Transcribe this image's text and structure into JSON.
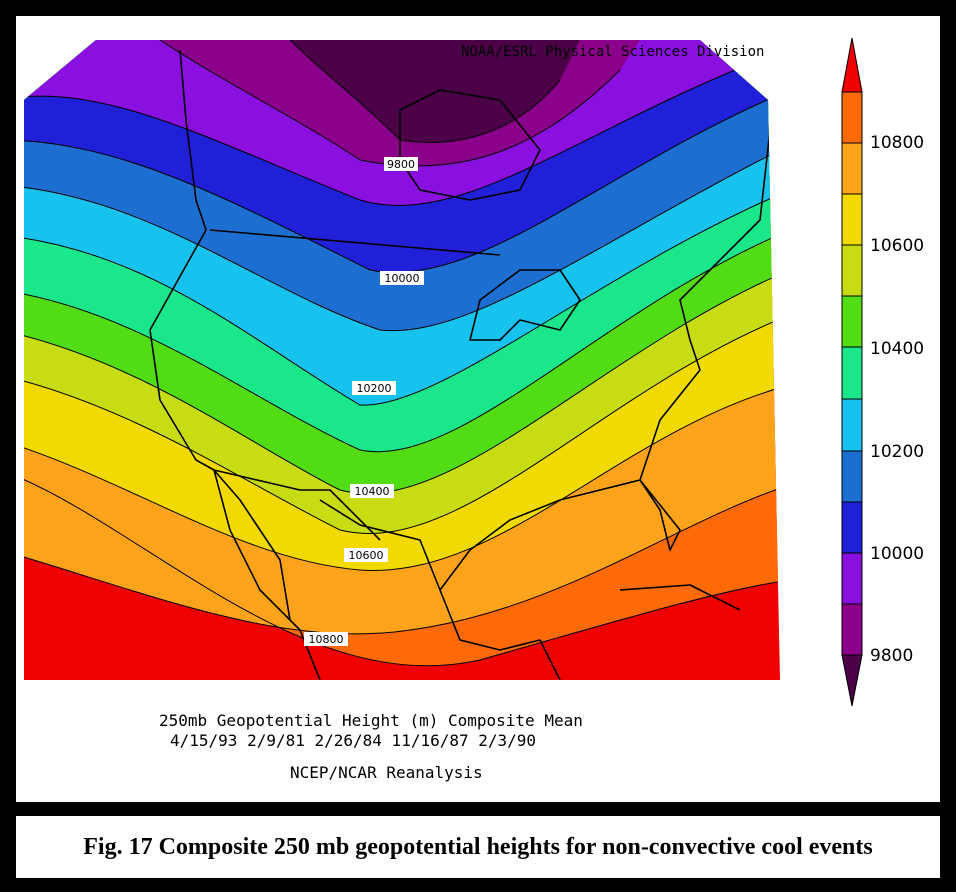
{
  "credit": "NOAA/ESRL Physical Sciences Division",
  "subtitle": {
    "line1": "250mb Geopotential Height (m) Composite Mean",
    "line2": "4/15/93 2/9/81 2/26/84 11/16/87 2/3/90",
    "line3": "NCEP/NCAR Reanalysis"
  },
  "caption": "Fig. 17 Composite 250 mb geopotential heights for non-convective cool events",
  "contour_labels": [
    "9800",
    "10000",
    "10200",
    "10400",
    "10600",
    "10800"
  ],
  "colorbar": {
    "labels": [
      "9800",
      "10000",
      "10200",
      "10400",
      "10600",
      "10800"
    ],
    "colors": [
      "#4b0048",
      "#8b008b",
      "#8a10e0",
      "#2020d8",
      "#1c6ed0",
      "#17c2ef",
      "#1ae68a",
      "#52dc14",
      "#c8dc14",
      "#f2da00",
      "#ffa41a",
      "#ff6a08",
      "#f00000"
    ]
  },
  "band_colors": [
    "#4b0048",
    "#8b008b",
    "#8a10e0",
    "#2020d8",
    "#1c6ed0",
    "#17c2ef",
    "#1ae68a",
    "#52dc14",
    "#c8dc14",
    "#f2da00",
    "#ffa41a",
    "#ff6a08",
    "#f00000"
  ]
}
